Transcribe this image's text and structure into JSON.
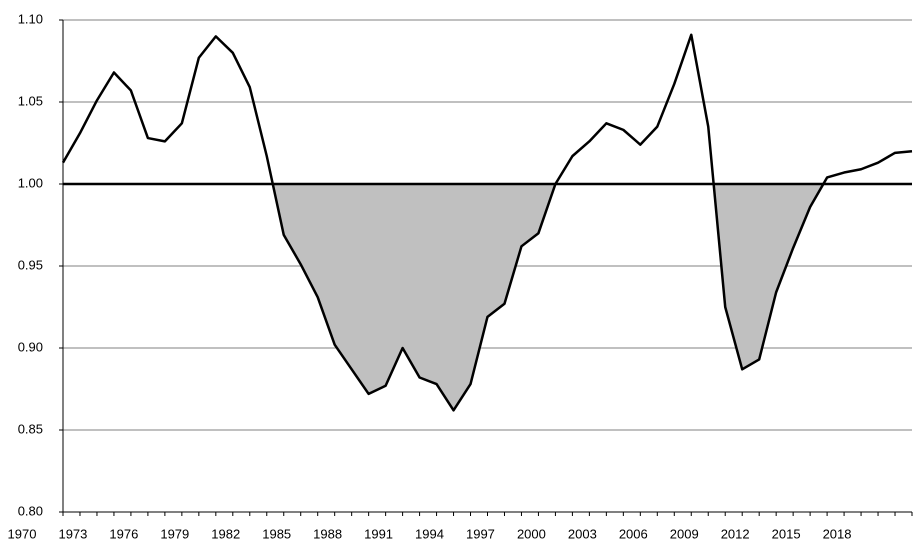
{
  "chart_data": {
    "type": "line",
    "categories": [
      "1970",
      null,
      null,
      "1973",
      null,
      null,
      "1976",
      null,
      null,
      "1979",
      null,
      null,
      "1982",
      null,
      null,
      "1985",
      null,
      null,
      "1988",
      null,
      null,
      "1991",
      null,
      null,
      "1994",
      null,
      null,
      "1997",
      null,
      null,
      "2000",
      null,
      null,
      "2003",
      null,
      null,
      "2006",
      null,
      null,
      "2009",
      null,
      null,
      "2012",
      null,
      null,
      "2015",
      null,
      null,
      "2018",
      null,
      null
    ],
    "series": [
      {
        "color": "#000000",
        "fill_below_reference": "#c0c0c0",
        "values": [
          1.013,
          1.031,
          1.051,
          1.068,
          1.057,
          1.028,
          1.026,
          1.037,
          1.077,
          1.09,
          1.08,
          1.059,
          1.017,
          0.969,
          0.951,
          0.931,
          0.902,
          0.887,
          0.872,
          0.877,
          0.9,
          0.882,
          0.878,
          0.862,
          0.878,
          0.919,
          0.927,
          0.962,
          0.97,
          1.0,
          1.017,
          1.026,
          1.037,
          1.033,
          1.024,
          1.035,
          1.061,
          1.091,
          1.035,
          0.925,
          0.887,
          0.893,
          0.934,
          0.961,
          0.986,
          1.004,
          1.007,
          1.009,
          1.013,
          1.019,
          1.02
        ]
      }
    ],
    "reference_line": 1,
    "ylim": [
      0.8,
      1.1
    ],
    "yticks": [
      {
        "value": 0.8,
        "label": "0.80"
      },
      0.85,
      {
        "value": 0.9,
        "label": "0.90"
      },
      0.95,
      {
        "value": 1.0,
        "label": "1.00"
      },
      1.05,
      {
        "value": 1.1,
        "label": "1.10"
      }
    ],
    "grid": true
  }
}
